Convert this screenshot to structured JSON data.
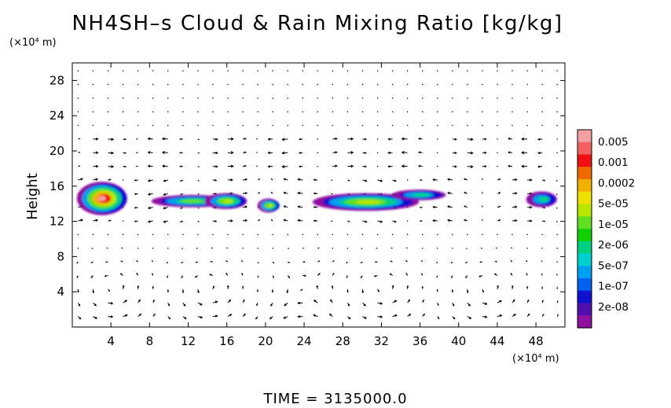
{
  "chart_data": {
    "type": "heatmap",
    "title": "NH4SH–s Cloud & Rain Mixing Ratio [kg/kg]",
    "ylabel": "Height",
    "y_unit": "(×10⁴ m)",
    "x_unit": "(×10⁴ m)",
    "xlim": [
      0,
      51
    ],
    "ylim": [
      0,
      30
    ],
    "x_ticks": [
      "4",
      "8",
      "12",
      "16",
      "20",
      "24",
      "28",
      "32",
      "36",
      "40",
      "44",
      "48"
    ],
    "y_ticks": [
      "4",
      "8",
      "12",
      "16",
      "20",
      "24",
      "28"
    ],
    "x_tick_values": [
      4,
      8,
      12,
      16,
      20,
      24,
      28,
      32,
      36,
      40,
      44,
      48
    ],
    "y_tick_values": [
      4,
      8,
      12,
      16,
      20,
      24,
      28
    ],
    "colorbar": {
      "labels": [
        "0.005",
        "0.001",
        "0.0002",
        "5e-05",
        "1e-05",
        "2e-06",
        "5e-07",
        "1e-07",
        "2e-08"
      ],
      "colors": [
        "#f4a0a0",
        "#f46060",
        "#f01010",
        "#f06a00",
        "#f4b000",
        "#f0e000",
        "#b8e800",
        "#60e020",
        "#10d000",
        "#00d080",
        "#00d0d0",
        "#00a0f0",
        "#0060f0",
        "#1010d0",
        "#5010b0",
        "#9010a0"
      ]
    },
    "cloud_blobs": [
      {
        "x": 3.2,
        "y": 14.6,
        "rx": 2.6,
        "ry": 1.9,
        "level": 0.005
      },
      {
        "x": 12.5,
        "y": 14.3,
        "rx": 4.2,
        "ry": 0.7,
        "level": 1e-05
      },
      {
        "x": 16.0,
        "y": 14.3,
        "rx": 2.2,
        "ry": 0.9,
        "level": 5e-05
      },
      {
        "x": 20.4,
        "y": 13.8,
        "rx": 1.1,
        "ry": 0.8,
        "level": 5e-05
      },
      {
        "x": 30.5,
        "y": 14.2,
        "rx": 5.5,
        "ry": 1.0,
        "level": 5e-05
      },
      {
        "x": 36.0,
        "y": 15.0,
        "rx": 2.8,
        "ry": 0.6,
        "level": 2e-06
      },
      {
        "x": 48.7,
        "y": 14.5,
        "rx": 1.6,
        "ry": 0.9,
        "level": 2e-06
      }
    ],
    "wind_vectors": "small arrows on a regular grid; strong circulation cells below 10 (×10⁴ m) centred near x = 4, 14, 24, 32, 43",
    "grid": false,
    "legend": "right colorbar"
  },
  "footer": {
    "time_text": "TIME = 3135000.0"
  }
}
